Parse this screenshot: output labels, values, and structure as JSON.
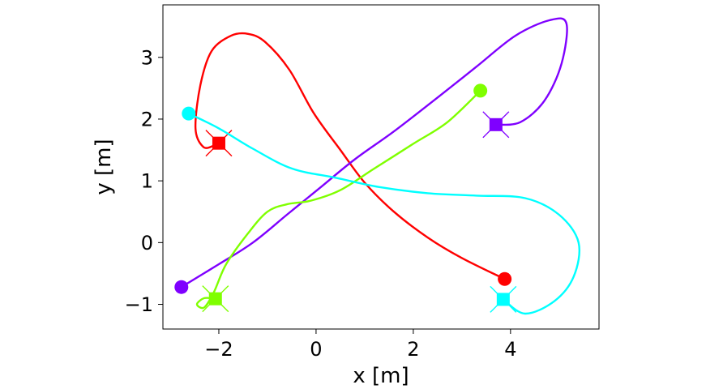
{
  "chart_data": {
    "type": "line",
    "title": "",
    "xlabel": "x [m]",
    "ylabel": "y [m]",
    "xlim": [
      -3.15,
      5.82
    ],
    "ylim": [
      -1.4,
      3.85
    ],
    "xticks": [
      -2,
      0,
      2,
      4
    ],
    "yticks": [
      -1,
      0,
      1,
      2,
      3
    ],
    "grid": false,
    "legend": "none",
    "series": [
      {
        "color": "#ff0000",
        "start": [
          3.88,
          -0.59
        ],
        "goal": [
          -2.0,
          1.61
        ],
        "points": [
          [
            3.88,
            -0.59
          ],
          [
            3.0,
            -0.25
          ],
          [
            2.3,
            0.08
          ],
          [
            1.6,
            0.5
          ],
          [
            1.0,
            0.97
          ],
          [
            0.5,
            1.5
          ],
          [
            -0.05,
            2.1
          ],
          [
            -0.55,
            2.8
          ],
          [
            -1.05,
            3.25
          ],
          [
            -1.4,
            3.38
          ],
          [
            -1.75,
            3.35
          ],
          [
            -2.15,
            3.1
          ],
          [
            -2.38,
            2.55
          ],
          [
            -2.48,
            1.85
          ],
          [
            -2.32,
            1.55
          ],
          [
            -2.1,
            1.57
          ],
          [
            -2.0,
            1.61
          ]
        ]
      },
      {
        "color": "#7f00ff",
        "start": [
          -2.77,
          -0.72
        ],
        "goal": [
          3.7,
          1.91
        ],
        "points": [
          [
            -2.77,
            -0.72
          ],
          [
            -2.0,
            -0.35
          ],
          [
            -1.3,
            0.0
          ],
          [
            -0.6,
            0.45
          ],
          [
            0.1,
            0.9
          ],
          [
            0.8,
            1.35
          ],
          [
            1.6,
            1.8
          ],
          [
            2.5,
            2.35
          ],
          [
            3.3,
            2.85
          ],
          [
            4.1,
            3.35
          ],
          [
            4.8,
            3.6
          ],
          [
            5.15,
            3.55
          ],
          [
            5.05,
            2.9
          ],
          [
            4.7,
            2.3
          ],
          [
            4.2,
            1.95
          ],
          [
            3.7,
            1.91
          ]
        ]
      },
      {
        "color": "#7fff00",
        "start": [
          3.38,
          2.46
        ],
        "goal": [
          -2.07,
          -0.91
        ],
        "points": [
          [
            3.38,
            2.46
          ],
          [
            2.7,
            1.95
          ],
          [
            2.0,
            1.6
          ],
          [
            1.2,
            1.2
          ],
          [
            0.5,
            0.85
          ],
          [
            -0.1,
            0.68
          ],
          [
            -0.6,
            0.62
          ],
          [
            -1.0,
            0.5
          ],
          [
            -1.4,
            0.15
          ],
          [
            -1.85,
            -0.35
          ],
          [
            -2.1,
            -0.8
          ],
          [
            -2.3,
            -1.05
          ],
          [
            -2.45,
            -1.0
          ],
          [
            -2.3,
            -0.9
          ],
          [
            -2.07,
            -0.91
          ]
        ]
      },
      {
        "color": "#00ffff",
        "start": [
          -2.62,
          2.09
        ],
        "goal": [
          3.85,
          -0.92
        ],
        "points": [
          [
            -2.62,
            2.09
          ],
          [
            -2.0,
            1.85
          ],
          [
            -1.3,
            1.52
          ],
          [
            -0.5,
            1.2
          ],
          [
            0.4,
            1.05
          ],
          [
            1.3,
            0.9
          ],
          [
            2.3,
            0.8
          ],
          [
            3.3,
            0.76
          ],
          [
            4.3,
            0.72
          ],
          [
            5.0,
            0.45
          ],
          [
            5.4,
            0.0
          ],
          [
            5.3,
            -0.55
          ],
          [
            4.9,
            -0.95
          ],
          [
            4.3,
            -1.15
          ],
          [
            3.85,
            -0.92
          ]
        ]
      }
    ]
  }
}
